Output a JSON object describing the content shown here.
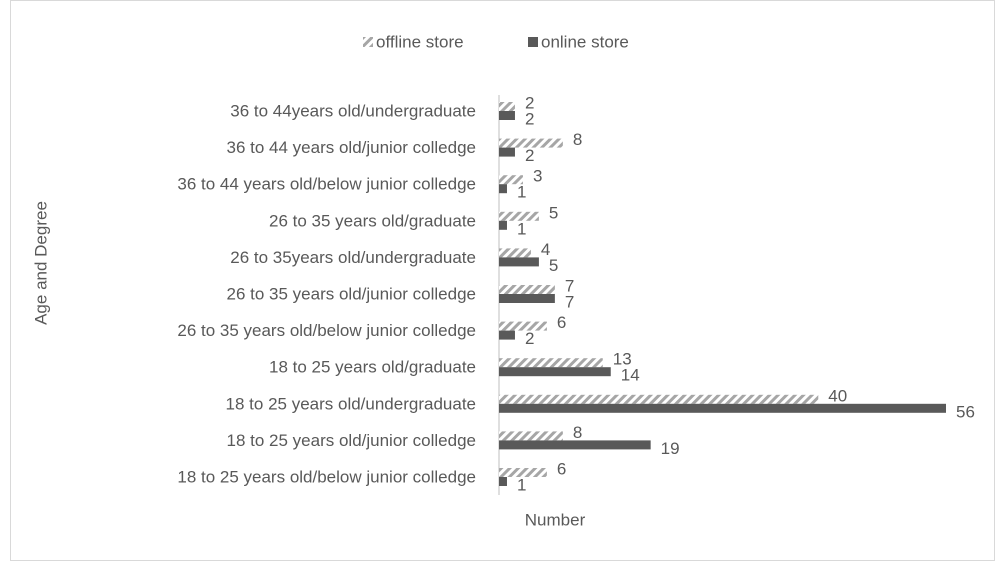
{
  "chart_data": {
    "type": "bar",
    "orientation": "horizontal",
    "x_label": "Number",
    "y_label": "Age and Degree",
    "categories": [
      "18 to 25 years old/below junior colledge",
      "18 to 25 years old/junior colledge",
      "18 to 25 years old/undergraduate",
      "18 to 25 years old/graduate",
      "26 to 35 years old/below junior colledge",
      "26 to 35 years old/junior colledge",
      "26 to 35years old/undergraduate",
      "26 to 35 years old/graduate",
      "36 to 44 years old/below junior colledge",
      "36 to 44 years old/junior colledge",
      "36 to 44years old/undergraduate"
    ],
    "series": [
      {
        "name": "offline store",
        "color": "#a6a6a6",
        "hatch": true,
        "values": [
          6,
          8,
          40,
          13,
          6,
          7,
          4,
          5,
          3,
          8,
          2
        ]
      },
      {
        "name": "online store",
        "color": "#595959",
        "hatch": false,
        "values": [
          1,
          19,
          56,
          14,
          2,
          7,
          5,
          1,
          1,
          2,
          2
        ]
      }
    ],
    "xlim": [
      0,
      56
    ],
    "legend": "top"
  }
}
